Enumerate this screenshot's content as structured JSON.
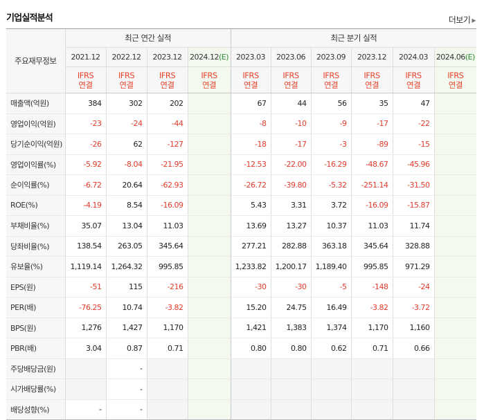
{
  "title": "기업실적분석",
  "more_label": "더보기",
  "row_header_label": "주요재무정보",
  "groups": {
    "annual": "최근 연간 실적",
    "quarter": "최근 분기 실적"
  },
  "periods": [
    "2021.12",
    "2022.12",
    "2023.12",
    "2024.12(E)",
    "2023.03",
    "2023.06",
    "2023.09",
    "2023.12",
    "2024.03",
    "2024.06(E)"
  ],
  "period_parts": [
    {
      "main": "2021.12",
      "est": ""
    },
    {
      "main": "2022.12",
      "est": ""
    },
    {
      "main": "2023.12",
      "est": ""
    },
    {
      "main": "2024.12",
      "est": "(E)"
    },
    {
      "main": "2023.03",
      "est": ""
    },
    {
      "main": "2023.06",
      "est": ""
    },
    {
      "main": "2023.09",
      "est": ""
    },
    {
      "main": "2023.12",
      "est": ""
    },
    {
      "main": "2024.03",
      "est": ""
    },
    {
      "main": "2024.06",
      "est": "(E)"
    }
  ],
  "basis_line1": "IFRS",
  "basis_line2": "연결",
  "rows": [
    {
      "label": "매출액(억원)",
      "values": [
        "384",
        "302",
        "202",
        "",
        "67",
        "44",
        "56",
        "35",
        "47",
        ""
      ]
    },
    {
      "label": "영업이익(억원)",
      "values": [
        "-23",
        "-24",
        "-44",
        "",
        "-8",
        "-10",
        "-9",
        "-17",
        "-22",
        ""
      ]
    },
    {
      "label": "당기순이익(억원)",
      "values": [
        "-26",
        "62",
        "-127",
        "",
        "-18",
        "-17",
        "-3",
        "-89",
        "-15",
        ""
      ]
    },
    {
      "label": "영업이익률(%)",
      "values": [
        "-5.92",
        "-8.04",
        "-21.95",
        "",
        "-12.53",
        "-22.00",
        "-16.29",
        "-48.67",
        "-45.96",
        ""
      ]
    },
    {
      "label": "순이익률(%)",
      "values": [
        "-6.72",
        "20.64",
        "-62.93",
        "",
        "-26.72",
        "-39.80",
        "-5.32",
        "-251.14",
        "-31.50",
        ""
      ]
    },
    {
      "label": "ROE(%)",
      "values": [
        "-4.19",
        "8.54",
        "-16.09",
        "",
        "5.43",
        "3.31",
        "3.72",
        "-16.09",
        "-15.87",
        ""
      ]
    },
    {
      "label": "부채비율(%)",
      "values": [
        "35.07",
        "13.04",
        "11.03",
        "",
        "13.69",
        "13.27",
        "10.37",
        "11.03",
        "11.74",
        ""
      ]
    },
    {
      "label": "당좌비율(%)",
      "values": [
        "138.54",
        "263.05",
        "345.64",
        "",
        "277.21",
        "282.88",
        "363.18",
        "345.64",
        "328.88",
        ""
      ]
    },
    {
      "label": "유보율(%)",
      "values": [
        "1,119.14",
        "1,264.32",
        "995.85",
        "",
        "1,233.82",
        "1,200.17",
        "1,189.40",
        "995.85",
        "971.29",
        ""
      ]
    },
    {
      "label": "EPS(원)",
      "values": [
        "-51",
        "115",
        "-216",
        "",
        "-30",
        "-30",
        "-5",
        "-148",
        "-24",
        ""
      ]
    },
    {
      "label": "PER(배)",
      "values": [
        "-76.25",
        "10.74",
        "-3.82",
        "",
        "15.20",
        "24.75",
        "16.49",
        "-3.82",
        "-3.72",
        ""
      ]
    },
    {
      "label": "BPS(원)",
      "values": [
        "1,276",
        "1,427",
        "1,170",
        "",
        "1,421",
        "1,383",
        "1,374",
        "1,170",
        "1,160",
        ""
      ]
    },
    {
      "label": "PBR(배)",
      "values": [
        "3.04",
        "0.87",
        "0.71",
        "",
        "0.80",
        "0.80",
        "0.62",
        "0.71",
        "0.66",
        ""
      ]
    },
    {
      "label": "주당배당금(원)",
      "values": [
        "",
        "-",
        "",
        "",
        "",
        "",
        "",
        "",
        "",
        ""
      ],
      "na": [
        0,
        2
      ]
    },
    {
      "label": "시가배당률(%)",
      "values": [
        "",
        "-",
        "",
        "",
        "",
        "",
        "",
        "",
        "",
        ""
      ],
      "na": [
        0,
        2
      ]
    },
    {
      "label": "배당성향(%)",
      "values": [
        "-",
        "-",
        "",
        "",
        "",
        "",
        "",
        "",
        "",
        ""
      ],
      "na": [
        2
      ]
    }
  ],
  "colors": {
    "negative": "#e33a2b",
    "basis": "#e8452c",
    "estimate_bg": "#f3f9ee",
    "header_bg": "#f7f7f7"
  }
}
